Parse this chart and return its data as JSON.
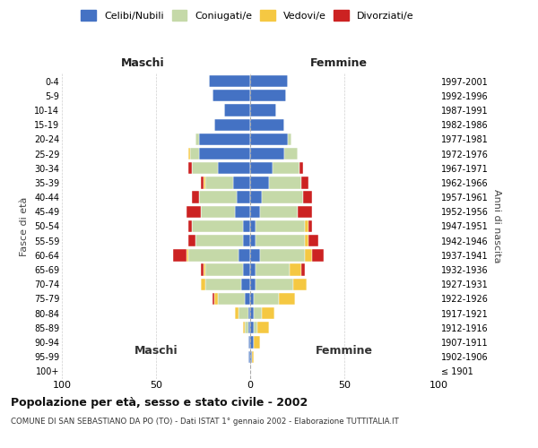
{
  "age_groups": [
    "100+",
    "95-99",
    "90-94",
    "85-89",
    "80-84",
    "75-79",
    "70-74",
    "65-69",
    "60-64",
    "55-59",
    "50-54",
    "45-49",
    "40-44",
    "35-39",
    "30-34",
    "25-29",
    "20-24",
    "15-19",
    "10-14",
    "5-9",
    "0-4"
  ],
  "years_right": [
    "≤ 1901",
    "1902-1906",
    "1907-1911",
    "1912-1916",
    "1917-1921",
    "1922-1926",
    "1927-1931",
    "1932-1936",
    "1937-1941",
    "1942-1946",
    "1947-1951",
    "1952-1956",
    "1957-1961",
    "1962-1966",
    "1967-1971",
    "1972-1976",
    "1977-1981",
    "1982-1986",
    "1987-1991",
    "1992-1996",
    "1997-2001"
  ],
  "male_celibi": [
    0,
    1,
    1,
    1,
    1,
    3,
    5,
    4,
    6,
    4,
    4,
    8,
    7,
    9,
    17,
    27,
    27,
    19,
    14,
    20,
    22
  ],
  "male_coniugati": [
    0,
    0,
    0,
    2,
    5,
    14,
    19,
    20,
    27,
    25,
    27,
    18,
    20,
    15,
    14,
    5,
    2,
    0,
    0,
    0,
    0
  ],
  "male_vedovi": [
    0,
    0,
    0,
    1,
    2,
    2,
    2,
    1,
    1,
    0,
    0,
    0,
    0,
    1,
    0,
    1,
    0,
    0,
    0,
    0,
    0
  ],
  "male_divorziati": [
    0,
    0,
    0,
    0,
    0,
    1,
    0,
    1,
    7,
    4,
    2,
    8,
    4,
    1,
    2,
    0,
    0,
    0,
    0,
    0,
    0
  ],
  "female_celibi": [
    0,
    1,
    2,
    2,
    2,
    2,
    3,
    3,
    5,
    3,
    3,
    5,
    6,
    10,
    12,
    18,
    20,
    18,
    14,
    19,
    20
  ],
  "female_coniugati": [
    0,
    0,
    0,
    2,
    4,
    13,
    20,
    18,
    24,
    26,
    26,
    20,
    22,
    17,
    14,
    7,
    2,
    0,
    0,
    0,
    0
  ],
  "female_vedovi": [
    0,
    1,
    3,
    6,
    7,
    9,
    7,
    6,
    4,
    2,
    2,
    0,
    0,
    0,
    0,
    0,
    0,
    0,
    0,
    0,
    0
  ],
  "female_divorziati": [
    0,
    0,
    0,
    0,
    0,
    0,
    0,
    2,
    6,
    5,
    2,
    8,
    5,
    4,
    2,
    0,
    0,
    0,
    0,
    0,
    0
  ],
  "color_celibi": "#4472c4",
  "color_coniugati": "#c5d9a8",
  "color_vedovi": "#f5c842",
  "color_divorziati": "#cc2222",
  "title": "Popolazione per età, sesso e stato civile - 2002",
  "subtitle": "COMUNE DI SAN SEBASTIANO DA PO (TO) - Dati ISTAT 1° gennaio 2002 - Elaborazione TUTTITALIA.IT",
  "ylabel": "Fasce di età",
  "ylabel_right": "Anni di nascita",
  "xlabel_left": "Maschi",
  "xlabel_right": "Femmine",
  "xlim": 100,
  "background_color": "#ffffff",
  "grid_color": "#d0d0d0"
}
